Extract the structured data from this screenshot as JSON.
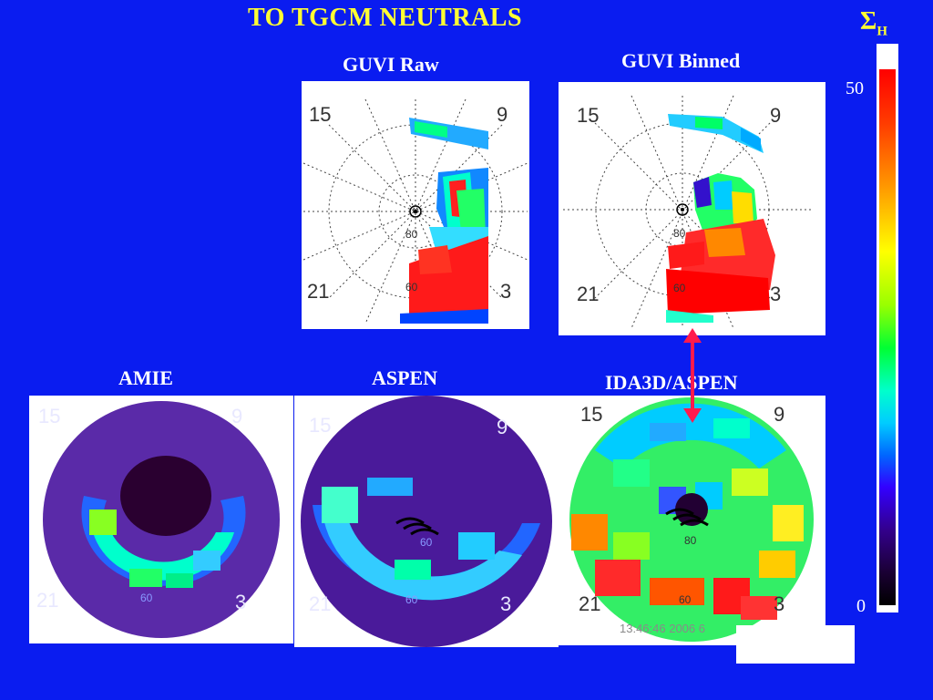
{
  "title": "TO TGCM NEUTRALS",
  "colorbar": {
    "symbol": "Σ",
    "subscript": "H",
    "max_label": "50",
    "min_label": "0"
  },
  "panels": [
    {
      "id": "guvi-raw",
      "label": "GUVI Raw",
      "mlt_labels": [
        "15",
        "9",
        "21",
        "3"
      ],
      "lat_labels": [
        "80",
        "60"
      ]
    },
    {
      "id": "guvi-binned",
      "label": "GUVI Binned",
      "mlt_labels": [
        "15",
        "9",
        "21",
        "3"
      ],
      "lat_labels": [
        "80",
        "60"
      ]
    },
    {
      "id": "amie",
      "label": "AMIE",
      "mlt_labels": [
        "15",
        "9",
        "21",
        "3"
      ],
      "lat_labels": [
        "60"
      ]
    },
    {
      "id": "aspen",
      "label": "ASPEN",
      "mlt_labels": [
        "15",
        "9",
        "21",
        "3"
      ],
      "lat_labels": [
        "60",
        "60"
      ]
    },
    {
      "id": "ida3d-aspen",
      "label": "IDA3D/ASPEN",
      "mlt_labels": [
        "15",
        "9",
        "21",
        "3"
      ],
      "lat_labels": [
        "80",
        "60"
      ]
    }
  ],
  "timestamp": "13:46:46 2006 6",
  "colors": {
    "background": "#0a1cf0",
    "title": "#ffff33",
    "arrow": "#ff1a4d"
  }
}
